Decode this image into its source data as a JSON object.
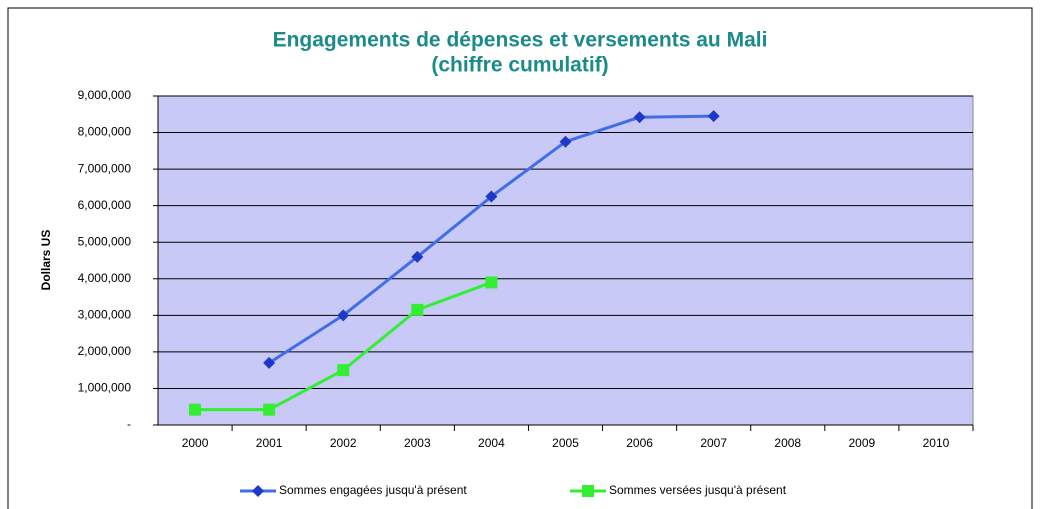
{
  "chart_data": {
    "type": "line",
    "title": "Engagements de dépenses et versements au Mali",
    "subtitle": "(chiffre cumulatif)",
    "y_label": "Dollars US",
    "categories": [
      "2000",
      "2001",
      "2002",
      "2003",
      "2004",
      "2005",
      "2006",
      "2007",
      "2008",
      "2009",
      "2010"
    ],
    "series": [
      {
        "name": "Sommes engagées jusqu'à présent",
        "color": "#3f6ee8",
        "marker": "diamond",
        "values": [
          null,
          1700000,
          3000000,
          4600000,
          6250000,
          7750000,
          8420000,
          8450000,
          null,
          null,
          null
        ]
      },
      {
        "name": "Sommes versées jusqu'à présent",
        "color": "#33ee33",
        "marker": "square",
        "values": [
          420000,
          420000,
          1500000,
          3150000,
          3900000,
          null,
          null,
          null,
          null,
          null,
          null
        ]
      }
    ],
    "ylim": [
      0,
      9000000
    ],
    "yticks": [
      {
        "value": 0,
        "label": "-"
      },
      {
        "value": 1000000,
        "label": "1,000,000"
      },
      {
        "value": 2000000,
        "label": "2,000,000"
      },
      {
        "value": 3000000,
        "label": "3,000,000"
      },
      {
        "value": 4000000,
        "label": "4,000,000"
      },
      {
        "value": 5000000,
        "label": "5,000,000"
      },
      {
        "value": 6000000,
        "label": "6,000,000"
      },
      {
        "value": 7000000,
        "label": "7,000,000"
      },
      {
        "value": 8000000,
        "label": "8,000,000"
      },
      {
        "value": 9000000,
        "label": "9,000,000"
      }
    ],
    "grid": true,
    "plot_background": "#c9c9f7",
    "legend": "bottom"
  }
}
